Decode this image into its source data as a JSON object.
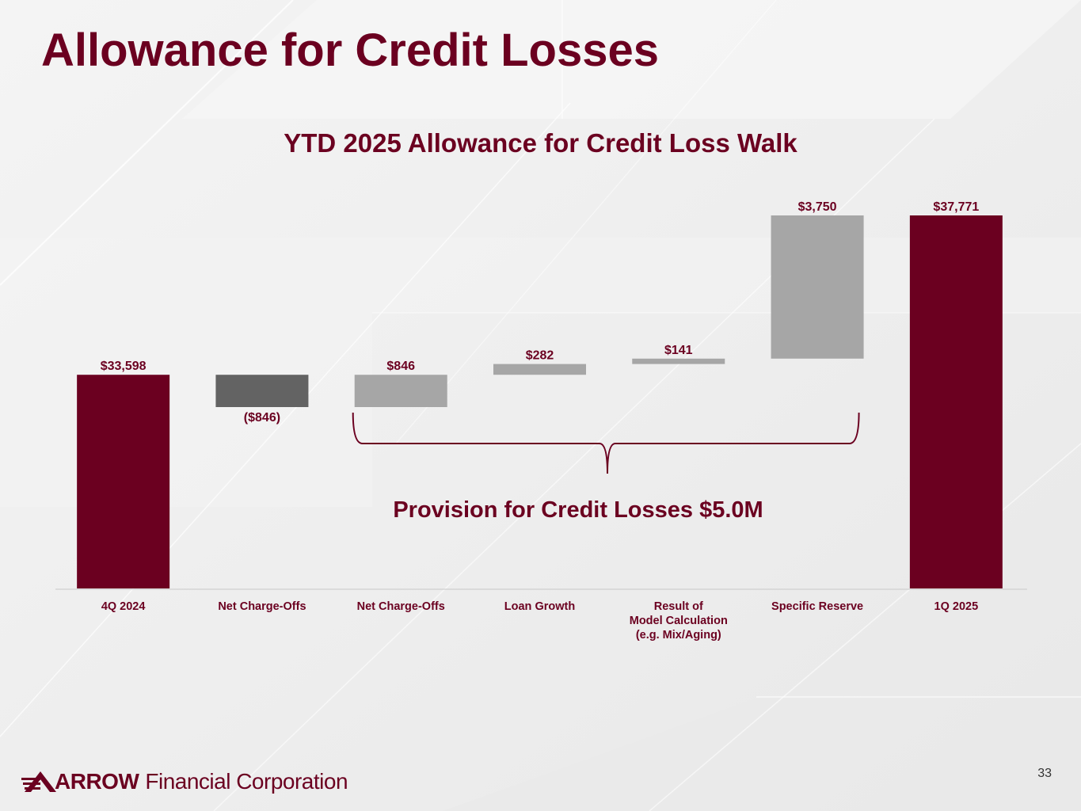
{
  "page": {
    "title": "Allowance for Credit Losses",
    "page_number": "33",
    "brace_label": "Provision for Credit Losses $5.0M"
  },
  "footer": {
    "logo_word": "ARROW",
    "logo_sub": "Financial Corporation"
  },
  "colors": {
    "brand": "#6b0020",
    "dark_gray": "#636363",
    "light_gray": "#a6a6a6",
    "background": "#f0f0f0"
  },
  "chart_data": {
    "type": "bar",
    "subtype": "waterfall",
    "title": "YTD 2025 Allowance for Credit Loss Walk",
    "xlabel": "",
    "ylabel": "",
    "ylim": [
      0,
      40000
    ],
    "grid": false,
    "legend": "none",
    "categories": [
      "4Q 2024",
      "Net Charge-Offs",
      "Net Charge-Offs",
      "Loan Growth",
      "Result of\nModel Calculation\n(e.g. Mix/Aging)",
      "Specific Reserve",
      "1Q 2025"
    ],
    "values": [
      33598,
      -846,
      846,
      282,
      141,
      3750,
      37771
    ],
    "bar_start": [
      0,
      33598,
      32752,
      33598,
      33880,
      34021,
      0
    ],
    "bar_end": [
      33598,
      32752,
      33598,
      33880,
      34021,
      37771,
      37771
    ],
    "data_labels": [
      "$33,598",
      "($846)",
      "$846",
      "$282",
      "$141",
      "$3,750",
      "$37,771"
    ],
    "label_position": [
      "above",
      "below",
      "above",
      "above",
      "above",
      "above",
      "above"
    ],
    "bar_colors": [
      "#6b0020",
      "#636363",
      "#a6a6a6",
      "#a6a6a6",
      "#a6a6a6",
      "#a6a6a6",
      "#6b0020"
    ]
  }
}
